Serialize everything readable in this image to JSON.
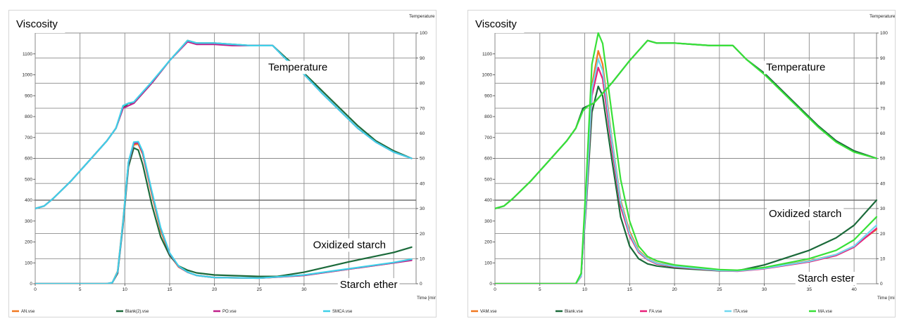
{
  "chart_data": [
    {
      "type": "line",
      "ylabel": "Viscosity",
      "y2label_partial": "Temperature [°",
      "xlabel_partial": "Time [min",
      "xlim": [
        0,
        42.5
      ],
      "ylim": [
        0,
        1200
      ],
      "y2lim": [
        0,
        100
      ],
      "x_ticks": [
        0,
        5,
        10,
        15,
        20,
        25,
        30,
        35,
        40
      ],
      "y_ticks": [
        0,
        100,
        200,
        300,
        400,
        500,
        600,
        700,
        800,
        900,
        1000,
        1100
      ],
      "y2_ticks": [
        0,
        10,
        20,
        30,
        40,
        50,
        60,
        70,
        80,
        90,
        100
      ],
      "grid": true,
      "legend_position": "bottom",
      "annotations": [
        {
          "text": "Temperature",
          "x": 26,
          "y": 1020
        },
        {
          "text": "Oxidized starch",
          "x": 31,
          "y": 170
        },
        {
          "text": "Starch ether",
          "x": 34,
          "y": -20
        }
      ],
      "series": [
        {
          "name": "AN.vse",
          "color": "#f07820",
          "axis": "viscosity",
          "x": [
            0,
            8,
            8.6,
            9.2,
            9.8,
            10.4,
            11,
            11.5,
            12,
            13,
            14,
            15,
            16,
            17,
            18,
            20,
            25,
            30,
            35,
            40,
            42
          ],
          "y": [
            0,
            0,
            5,
            60,
            300,
            580,
            665,
            668,
            620,
            430,
            255,
            140,
            80,
            55,
            40,
            30,
            27,
            40,
            70,
            100,
            115
          ]
        },
        {
          "name": "Blank(2).vse",
          "color": "#1b6a3a",
          "axis": "viscosity",
          "x": [
            0,
            8,
            8.6,
            9.2,
            9.8,
            10.4,
            11,
            11.5,
            12,
            13,
            14,
            15,
            16,
            17,
            18,
            20,
            25,
            27,
            30,
            35,
            40,
            42
          ],
          "y": [
            0,
            0,
            5,
            50,
            280,
            560,
            650,
            640,
            570,
            380,
            225,
            135,
            85,
            65,
            52,
            42,
            35,
            35,
            55,
            105,
            150,
            175
          ]
        },
        {
          "name": "PO.vse",
          "color": "#c0208a",
          "axis": "viscosity",
          "x": [
            0,
            8,
            8.6,
            9.2,
            9.8,
            10.4,
            11,
            11.5,
            12,
            13,
            14,
            15,
            16,
            17,
            18,
            20,
            25,
            30,
            35,
            40,
            42
          ],
          "y": [
            0,
            0,
            5,
            55,
            290,
            575,
            672,
            675,
            625,
            440,
            265,
            145,
            82,
            55,
            40,
            30,
            27,
            40,
            70,
            100,
            112
          ]
        },
        {
          "name": "SMCA.vse",
          "color": "#3fd0e8",
          "axis": "viscosity",
          "x": [
            0,
            8,
            8.6,
            9.2,
            9.8,
            10.4,
            11,
            11.5,
            12,
            13,
            14,
            15,
            16,
            17,
            18,
            20,
            25,
            30,
            35,
            40,
            42
          ],
          "y": [
            0,
            0,
            5,
            58,
            295,
            582,
            678,
            680,
            632,
            445,
            268,
            148,
            84,
            56,
            40,
            30,
            27,
            42,
            72,
            102,
            118
          ]
        },
        {
          "name": "Temperature (Blank(2).vse)",
          "color": "#1b6a3a",
          "axis": "temperature",
          "x": [
            0,
            1,
            2,
            4,
            6,
            8,
            9,
            9.8,
            10.4,
            11,
            13,
            15,
            17,
            18,
            20,
            22,
            24,
            26.5,
            28,
            30,
            32,
            34,
            36,
            38,
            40,
            42
          ],
          "y": [
            30,
            31,
            34,
            41,
            49,
            57,
            62,
            70,
            72,
            72,
            80,
            89,
            97,
            96,
            96,
            95.5,
            95,
            95,
            90,
            84,
            77,
            70,
            63,
            57,
            53,
            50
          ]
        },
        {
          "name": "Temperature (PO.vse)",
          "color": "#c0208a",
          "axis": "temperature",
          "x": [
            0,
            1,
            2,
            4,
            6,
            8,
            9,
            9.8,
            10.4,
            11,
            13,
            15,
            17,
            18,
            20,
            22,
            24,
            26.5,
            28,
            30,
            32,
            34,
            36,
            38,
            40,
            42
          ],
          "y": [
            30,
            31,
            34,
            41,
            49,
            57,
            62,
            70,
            71,
            72,
            80,
            89,
            96.5,
            95.5,
            95.5,
            95,
            95,
            95,
            89.5,
            83.5,
            76,
            69,
            62,
            56.5,
            52.5,
            50
          ]
        },
        {
          "name": "Temperature (SMCA.vse)",
          "color": "#3fd0e8",
          "axis": "temperature",
          "x": [
            0,
            1,
            2,
            4,
            6,
            8,
            9,
            9.8,
            10.4,
            11,
            13,
            15,
            17,
            18,
            20,
            22,
            24,
            26.5,
            28,
            30,
            32,
            34,
            36,
            38,
            40,
            42
          ],
          "y": [
            30,
            31,
            34,
            41,
            49,
            57,
            62,
            71,
            72,
            72.5,
            80.5,
            89,
            97,
            96,
            96,
            95.5,
            95,
            95,
            89.5,
            83.5,
            76,
            69,
            62,
            56.5,
            52.5,
            50
          ]
        }
      ]
    },
    {
      "type": "line",
      "ylabel": "Viscosity",
      "y2label_partial": "Temperature [°",
      "xlabel_partial": "Time [min",
      "xlim": [
        0,
        42.5
      ],
      "ylim": [
        0,
        1200
      ],
      "y2lim": [
        0,
        100
      ],
      "x_ticks": [
        0,
        5,
        10,
        15,
        20,
        25,
        30,
        35,
        40
      ],
      "y_ticks": [
        0,
        100,
        200,
        300,
        400,
        500,
        600,
        700,
        800,
        900,
        1000,
        1100
      ],
      "y2_ticks": [
        0,
        10,
        20,
        30,
        40,
        50,
        60,
        70,
        80,
        90,
        100
      ],
      "grid": true,
      "legend_position": "bottom",
      "annotations": [
        {
          "text": "Temperature",
          "x": 30.2,
          "y": 1020
        },
        {
          "text": "Oxidized starch",
          "x": 30.5,
          "y": 320
        },
        {
          "text": "Starch ester",
          "x": 33.7,
          "y": 10
        }
      ],
      "series": [
        {
          "name": "VAM.vse",
          "color": "#f07820",
          "axis": "viscosity",
          "x": [
            0,
            9,
            9.6,
            10.2,
            10.8,
            11.5,
            12,
            13,
            14,
            15,
            16,
            17,
            18,
            20,
            25,
            27,
            30,
            35,
            38,
            40,
            42.5
          ],
          "y": [
            0,
            0,
            40,
            450,
            950,
            1115,
            1050,
            700,
            400,
            250,
            160,
            120,
            100,
            85,
            65,
            63,
            75,
            110,
            140,
            180,
            260
          ]
        },
        {
          "name": "Blank.vse",
          "color": "#1b6a3a",
          "axis": "viscosity",
          "x": [
            0,
            9,
            9.6,
            10.2,
            10.8,
            11.5,
            12,
            13,
            14,
            15,
            16,
            17,
            18,
            20,
            25,
            27,
            30,
            35,
            38,
            40,
            42.5
          ],
          "y": [
            0,
            0,
            40,
            400,
            820,
            945,
            900,
            600,
            320,
            180,
            120,
            95,
            85,
            75,
            62,
            62,
            90,
            160,
            220,
            280,
            400
          ]
        },
        {
          "name": "FA.vse",
          "color": "#e8207a",
          "axis": "viscosity",
          "x": [
            0,
            9,
            9.6,
            10.2,
            10.8,
            11.5,
            12,
            13,
            14,
            15,
            16,
            17,
            18,
            20,
            25,
            27,
            30,
            35,
            38,
            40,
            42.5
          ],
          "y": [
            0,
            0,
            35,
            420,
            900,
            1035,
            980,
            660,
            370,
            230,
            150,
            115,
            95,
            80,
            63,
            60,
            72,
            105,
            135,
            175,
            265
          ]
        },
        {
          "name": "ITA.vse",
          "color": "#70d8f0",
          "axis": "viscosity",
          "x": [
            0,
            9,
            9.6,
            10.2,
            10.8,
            11.5,
            12,
            13,
            14,
            15,
            16,
            17,
            18,
            20,
            25,
            27,
            30,
            35,
            38,
            40,
            42.5
          ],
          "y": [
            0,
            0,
            38,
            440,
            930,
            1075,
            1020,
            690,
            390,
            240,
            155,
            118,
            98,
            83,
            64,
            62,
            74,
            108,
            140,
            180,
            280
          ]
        },
        {
          "name": "MA.vse",
          "color": "#38e038",
          "axis": "viscosity",
          "x": [
            0,
            9,
            9.6,
            10.2,
            10.8,
            11.5,
            12,
            13,
            14,
            15,
            16,
            17,
            18,
            20,
            25,
            27,
            30,
            35,
            38,
            40,
            42.5
          ],
          "y": [
            0,
            0,
            50,
            520,
            1050,
            1200,
            1150,
            820,
            500,
            300,
            180,
            130,
            110,
            90,
            68,
            65,
            78,
            120,
            160,
            210,
            320
          ]
        },
        {
          "name": "Temperature (Blank.vse)",
          "color": "#1b6a3a",
          "axis": "temperature",
          "x": [
            0,
            1,
            2,
            4,
            6,
            8,
            9,
            9.8,
            10.4,
            11,
            13,
            15,
            17,
            18,
            20,
            22,
            24,
            26.5,
            28,
            30,
            32,
            34,
            36,
            38,
            40,
            42.5
          ],
          "y": [
            30,
            31,
            34,
            41,
            49,
            57,
            62,
            70,
            71,
            72,
            80,
            89,
            97,
            96,
            96,
            95.5,
            95,
            95,
            89.5,
            84,
            77,
            70,
            63,
            57,
            53,
            50
          ]
        },
        {
          "name": "Temperature (MA.vse)",
          "color": "#38e038",
          "axis": "temperature",
          "x": [
            0,
            1,
            2,
            4,
            6,
            8,
            9,
            9.8,
            10.4,
            11,
            13,
            15,
            17,
            18,
            20,
            22,
            24,
            26.5,
            28,
            30,
            32,
            34,
            36,
            38,
            40,
            42.5
          ],
          "y": [
            30,
            31,
            34,
            41,
            49,
            57,
            62,
            69,
            71,
            72,
            80,
            89,
            97,
            96,
            96,
            95.5,
            95,
            95,
            89.5,
            83.5,
            76.5,
            69.5,
            62.5,
            56.5,
            52.5,
            50
          ]
        }
      ]
    }
  ]
}
